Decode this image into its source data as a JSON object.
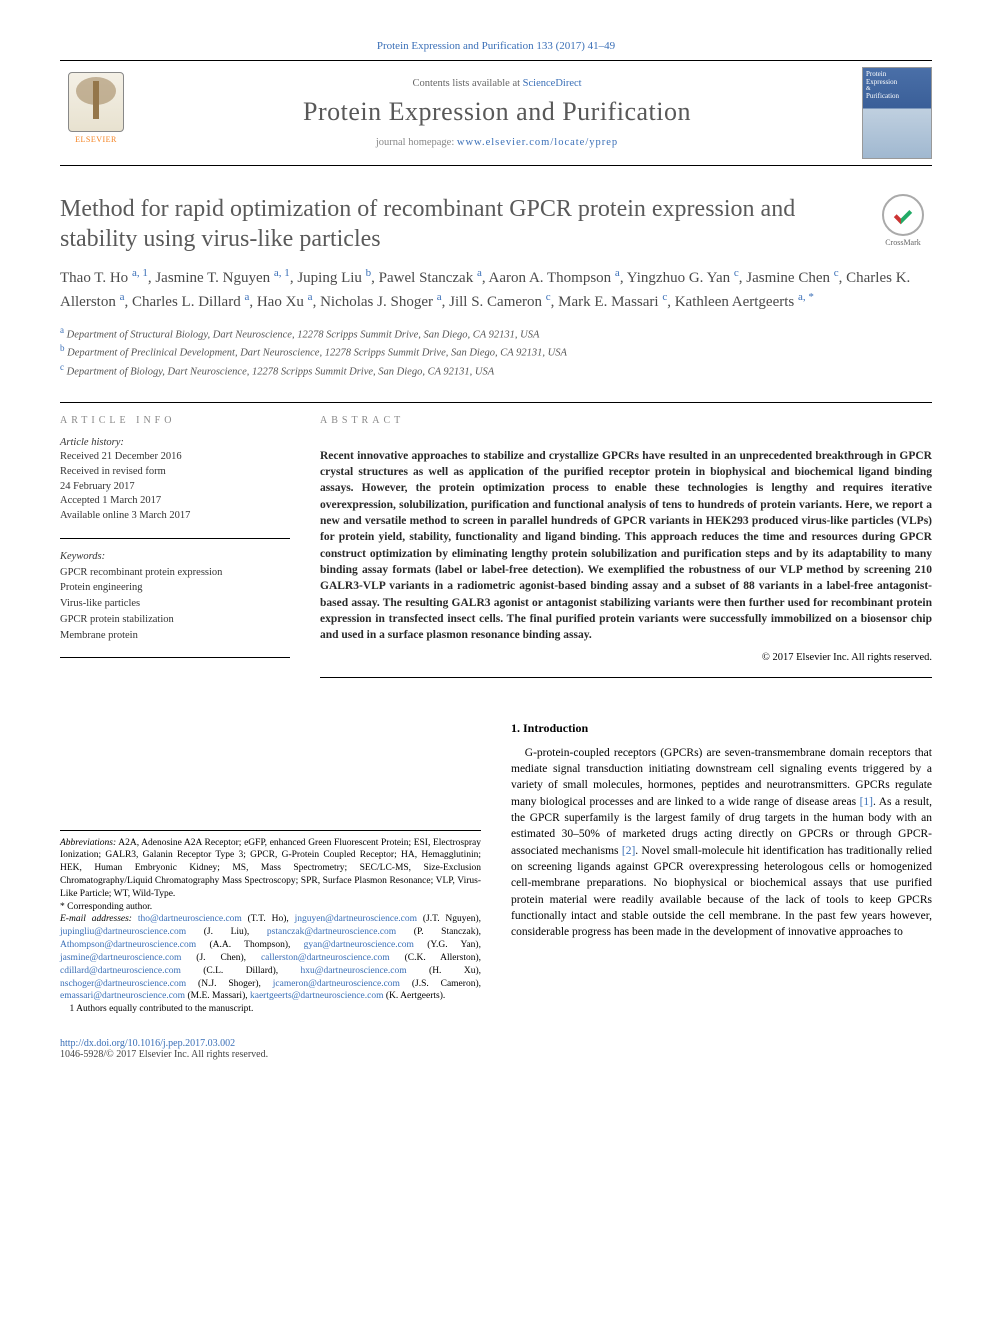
{
  "masthead": {
    "citation_prefix": "Protein Expression and Purification 133 (2017) 41–49",
    "contents_label": "Contents lists available at ",
    "contents_link": "ScienceDirect",
    "journal_name": "Protein Expression and Purification",
    "homepage_label": "journal homepage: ",
    "homepage_url": "www.elsevier.com/locate/yprep",
    "elsevier": "ELSEVIER",
    "cover_line1": "Protein",
    "cover_line2": "Expression",
    "cover_line3": "Purification",
    "crossmark": "CrossMark"
  },
  "title": "Method for rapid optimization of recombinant GPCR protein expression and stability using virus-like particles",
  "authors_html": "Thao T. Ho <span class='aff'>a, 1</span>, Jasmine T. Nguyen <span class='aff'>a, 1</span>, Juping Liu <span class='aff'>b</span>, Pawel Stanczak <span class='aff'>a</span>, Aaron A. Thompson <span class='aff'>a</span>, Yingzhuo G. Yan <span class='aff'>c</span>, Jasmine Chen <span class='aff'>c</span>, Charles K. Allerston <span class='aff'>a</span>, Charles L. Dillard <span class='aff'>a</span>, Hao Xu <span class='aff'>a</span>, Nicholas J. Shoger <span class='aff'>a</span>, Jill S. Cameron <span class='aff'>c</span>, Mark E. Massari <span class='aff'>c</span>, Kathleen Aertgeerts <span class='aff'>a, *</span>",
  "affiliations": {
    "a": "Department of Structural Biology, Dart Neuroscience, 12278 Scripps Summit Drive, San Diego, CA 92131, USA",
    "b": "Department of Preclinical Development, Dart Neuroscience, 12278 Scripps Summit Drive, San Diego, CA 92131, USA",
    "c": "Department of Biology, Dart Neuroscience, 12278 Scripps Summit Drive, San Diego, CA 92131, USA"
  },
  "article_info": {
    "heading": "ARTICLE INFO",
    "history_label": "Article history:",
    "received": "Received 21 December 2016",
    "revised1": "Received in revised form",
    "revised2": "24 February 2017",
    "accepted": "Accepted 1 March 2017",
    "online": "Available online 3 March 2017",
    "keywords_label": "Keywords:",
    "keywords": [
      "GPCR recombinant protein expression",
      "Protein engineering",
      "Virus-like particles",
      "GPCR protein stabilization",
      "Membrane protein"
    ]
  },
  "abstract": {
    "heading": "ABSTRACT",
    "text": "Recent innovative approaches to stabilize and crystallize GPCRs have resulted in an unprecedented breakthrough in GPCR crystal structures as well as application of the purified receptor protein in biophysical and biochemical ligand binding assays. However, the protein optimization process to enable these technologies is lengthy and requires iterative overexpression, solubilization, purification and functional analysis of tens to hundreds of protein variants. Here, we report a new and versatile method to screen in parallel hundreds of GPCR variants in HEK293 produced virus-like particles (VLPs) for protein yield, stability, functionality and ligand binding. This approach reduces the time and resources during GPCR construct optimization by eliminating lengthy protein solubilization and purification steps and by its adaptability to many binding assay formats (label or label-free detection). We exemplified the robustness of our VLP method by screening 210 GALR3-VLP variants in a radiometric agonist-based binding assay and a subset of 88 variants in a label-free antagonist-based assay. The resulting GALR3 agonist or antagonist stabilizing variants were then further used for recombinant protein expression in transfected insect cells. The final purified protein variants were successfully immobilized on a biosensor chip and used in a surface plasmon resonance binding assay.",
    "copyright": "© 2017 Elsevier Inc. All rights reserved."
  },
  "intro": {
    "heading": "1. Introduction",
    "p1": "G-protein-coupled receptors (GPCRs) are seven-transmembrane domain receptors that mediate signal transduction initiating downstream cell signaling events triggered by a variety of small molecules, hormones, peptides and neurotransmitters. GPCRs regulate many biological processes and are linked to a wide range of disease areas [1]. As a result, the GPCR superfamily is the largest family of drug targets in the human body with an estimated 30–50% of marketed drugs acting directly on GPCRs or through GPCR-associated mechanisms [2]. Novel small-molecule hit identification has traditionally relied on screening ligands against GPCR overexpressing heterologous cells or homogenized cell-membrane preparations. No biophysical or biochemical assays that use purified protein material were readily available because of the lack of tools to keep GPCRs functionally intact and stable outside the cell membrane. In the past few years however, considerable progress has been made in the development of innovative approaches to"
  },
  "footnotes": {
    "abbrev_label": "Abbreviations:",
    "abbrev": " A2A, Adenosine A2A Receptor; eGFP, enhanced Green Fluorescent Protein; ESI, Electrospray Ionization; GALR3, Galanin Receptor Type 3; GPCR, G-Protein Coupled Receptor; HA, Hemagglutinin; HEK, Human Embryonic Kidney; MS, Mass Spectrometry; SEC/LC-MS, Size-Exclusion Chromatography/Liquid Chromatography Mass Spectroscopy; SPR, Surface Plasmon Resonance; VLP, Virus-Like Particle; WT, Wild-Type.",
    "corr": "* Corresponding author.",
    "email_label": "E-mail addresses:",
    "emails": " tho@dartneuroscience.com (T.T. Ho), jnguyen@dartneuroscience.com (J.T. Nguyen), jupingliu@dartneuroscience.com (J. Liu), pstanczak@dartneuroscience.com (P. Stanczak), Athompson@dartneuroscience.com (A.A. Thompson), gyan@dartneuroscience.com (Y.G. Yan), jasmine@dartneuroscience.com (J. Chen), callerston@dartneuroscience.com (C.K. Allerston), cdillard@dartneuroscience.com (C.L. Dillard), hxu@dartneuroscience.com (H. Xu), nschoger@dartneuroscience.com (N.J. Shoger), jcameron@dartneuroscience.com (J.S. Cameron), emassari@dartneuroscience.com (M.E. Massari), kaertgeerts@dartneuroscience.com (K. Aertgeerts).",
    "note1": "1 Authors equally contributed to the manuscript."
  },
  "footer": {
    "doi": "http://dx.doi.org/10.1016/j.pep.2017.03.002",
    "issn": "1046-5928/© 2017 Elsevier Inc. All rights reserved."
  },
  "colors": {
    "link": "#3a6fb7",
    "heading_gray": "#5a5a5a",
    "orange": "#f58220"
  }
}
